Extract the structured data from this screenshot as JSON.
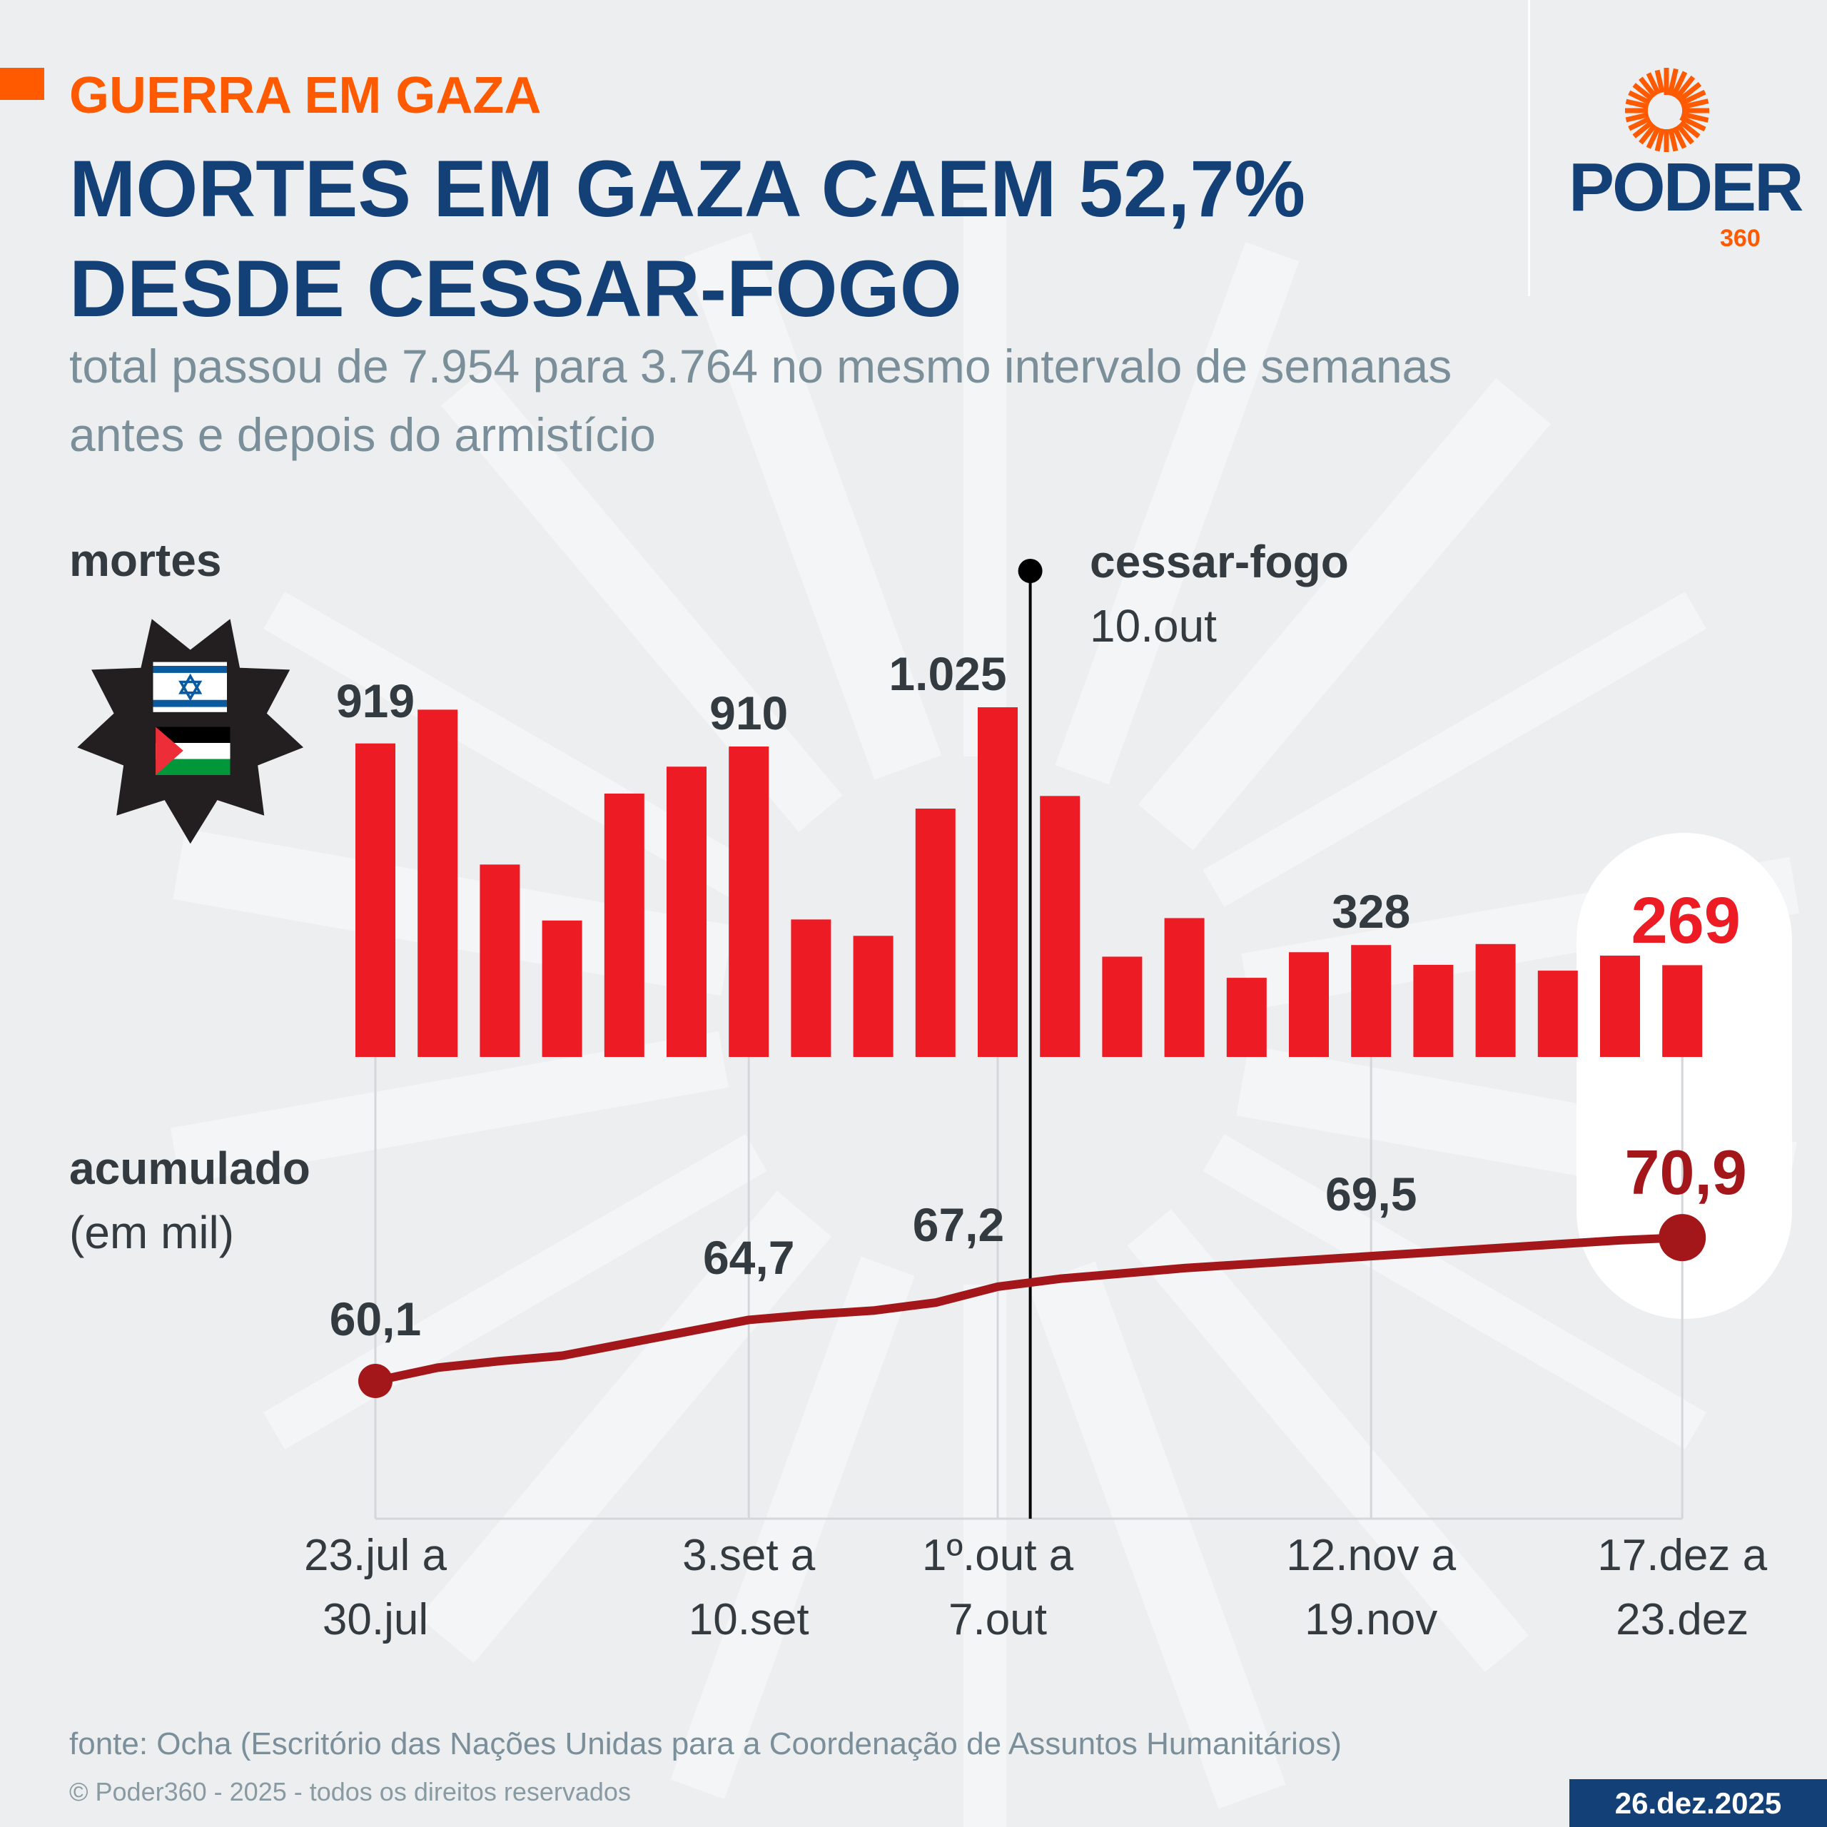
{
  "header": {
    "kicker": "GUERRA EM GAZA",
    "title": "MORTES EM GAZA CAEM 52,7% DESDE CESSAR-FOGO",
    "subtitle": "total passou de 7.954 para 3.764 no mesmo intervalo de semanas antes e depois do armistício"
  },
  "logo": {
    "name": "PODER",
    "suffix": "360"
  },
  "colors": {
    "bar": "#ed1c24",
    "line": "#a3161a",
    "highlight": "#ed1c24",
    "title": "#134177",
    "accent": "#ff5a00"
  },
  "footer": {
    "source": "fonte: Ocha (Escritório das Nações Unidas para a Coordenação de Assuntos Humanitários)",
    "copyright": "© Poder360 - 2025 - todos os direitos reservados",
    "date": "26.dez.2025"
  },
  "chart_data": {
    "type": "bar+line",
    "bar_label": "mortes",
    "line_label": "acumulado",
    "line_sublabel": "(em mil)",
    "annotation": {
      "title": "cessar-fogo",
      "date": "10.out",
      "after_bar_index": 11
    },
    "x_tick_labels": [
      {
        "index": 0,
        "line1": "23.jul a",
        "line2": "30.jul"
      },
      {
        "index": 6,
        "line1": "3.set a",
        "line2": "10.set"
      },
      {
        "index": 10,
        "line1": "1º.out a",
        "line2": "7.out"
      },
      {
        "index": 16,
        "line1": "12.nov a",
        "line2": "19.nov"
      },
      {
        "index": 21,
        "line1": "17.dez a",
        "line2": "23.dez"
      }
    ],
    "bars": [
      919,
      1018,
      564,
      400,
      772,
      851,
      910,
      403,
      355,
      728,
      1025,
      765,
      294,
      407,
      232,
      307,
      328,
      270,
      331,
      253,
      297,
      269
    ],
    "bar_data_labels": [
      {
        "index": 0,
        "text": "919"
      },
      {
        "index": 6,
        "text": "910"
      },
      {
        "index": 10,
        "text": "1.025"
      },
      {
        "index": 16,
        "text": "328"
      },
      {
        "index": 21,
        "text": "269"
      }
    ],
    "line": [
      60.1,
      61.1,
      61.6,
      62.0,
      62.9,
      63.8,
      64.7,
      65.1,
      65.4,
      66.0,
      67.2,
      67.8,
      68.2,
      68.6,
      68.9,
      69.2,
      69.5,
      69.8,
      70.1,
      70.4,
      70.7,
      70.9
    ],
    "line_data_labels": [
      {
        "index": 0,
        "text": "60,1"
      },
      {
        "index": 6,
        "text": "64,7"
      },
      {
        "index": 10,
        "text": "67,2"
      },
      {
        "index": 16,
        "text": "69,5"
      },
      {
        "index": 21,
        "text": "70,9"
      }
    ]
  }
}
